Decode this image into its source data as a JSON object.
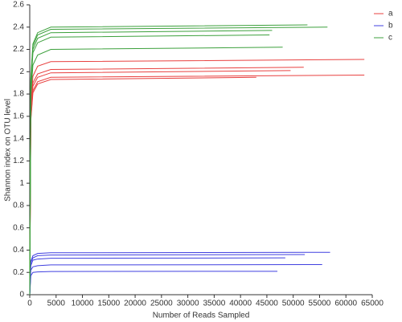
{
  "chart_data": {
    "type": "line",
    "x_label": "Number of Reads Sampled",
    "y_label": "Shannon index on OTU level",
    "xlim": [
      0,
      65000
    ],
    "xticks": [
      0,
      5000,
      10000,
      15000,
      20000,
      25000,
      30000,
      35000,
      40000,
      45000,
      50000,
      55000,
      60000,
      65000
    ],
    "ylim": [
      0,
      2.6
    ],
    "yticks": [
      0,
      0.2,
      0.4,
      0.6,
      0.8,
      1,
      1.2,
      1.4,
      1.6,
      1.8,
      2,
      2.2,
      2.4,
      2.6
    ],
    "legend": "top-right",
    "groups": [
      {
        "name": "a",
        "color": "#e8403f",
        "lines": [
          {
            "x": [
              0,
              200,
              600,
              1500,
              4000,
              63500
            ],
            "values": [
              0,
              1.69,
              1.96,
              2.05,
              2.09,
              2.11
            ]
          },
          {
            "x": [
              0,
              200,
              600,
              1500,
              4000,
              52000
            ],
            "values": [
              0,
              1.63,
              1.9,
              1.98,
              2.02,
              2.04
            ]
          },
          {
            "x": [
              0,
              200,
              600,
              1500,
              4000,
              49500
            ],
            "values": [
              0,
              1.61,
              1.87,
              1.95,
              1.99,
              2.01
            ]
          },
          {
            "x": [
              0,
              200,
              600,
              1500,
              4000,
              63500
            ],
            "values": [
              0,
              1.58,
              1.83,
              1.91,
              1.95,
              1.97
            ]
          },
          {
            "x": [
              0,
              200,
              600,
              1500,
              4000,
              43000
            ],
            "values": [
              0,
              1.56,
              1.81,
              1.89,
              1.93,
              1.95
            ]
          }
        ]
      },
      {
        "name": "b",
        "color": "#4040e0",
        "lines": [
          {
            "x": [
              0,
              200,
              600,
              1500,
              4000,
              57000
            ],
            "values": [
              0,
              0.3,
              0.35,
              0.37,
              0.376,
              0.38
            ]
          },
          {
            "x": [
              0,
              200,
              600,
              1500,
              4000,
              52200
            ],
            "values": [
              0,
              0.29,
              0.33,
              0.35,
              0.356,
              0.36
            ]
          },
          {
            "x": [
              0,
              200,
              600,
              1500,
              4000,
              48500
            ],
            "values": [
              0,
              0.26,
              0.31,
              0.32,
              0.327,
              0.33
            ]
          },
          {
            "x": [
              0,
              200,
              600,
              1500,
              4000,
              55500
            ],
            "values": [
              0,
              0.22,
              0.25,
              0.26,
              0.267,
              0.27
            ]
          },
          {
            "x": [
              0,
              200,
              600,
              1500,
              4000,
              47000
            ],
            "values": [
              0,
              0.17,
              0.2,
              0.204,
              0.208,
              0.21
            ]
          }
        ]
      },
      {
        "name": "c",
        "color": "#3ca03c",
        "lines": [
          {
            "x": [
              0,
              200,
              600,
              1500,
              4000,
              52700
            ],
            "values": [
              0,
              1.94,
              2.25,
              2.35,
              2.4,
              2.42
            ]
          },
          {
            "x": [
              0,
              200,
              600,
              1500,
              4000,
              56500
            ],
            "values": [
              0,
              1.92,
              2.23,
              2.33,
              2.38,
              2.4
            ]
          },
          {
            "x": [
              0,
              200,
              600,
              1500,
              4000,
              46000
            ],
            "values": [
              0,
              1.9,
              2.2,
              2.3,
              2.35,
              2.37
            ]
          },
          {
            "x": [
              0,
              200,
              600,
              1500,
              4000,
              45500
            ],
            "values": [
              0,
              1.86,
              2.17,
              2.26,
              2.31,
              2.33
            ]
          },
          {
            "x": [
              0,
              200,
              600,
              1500,
              4000,
              48000
            ],
            "values": [
              0,
              1.78,
              2.06,
              2.15,
              2.2,
              2.22
            ]
          }
        ]
      }
    ]
  }
}
